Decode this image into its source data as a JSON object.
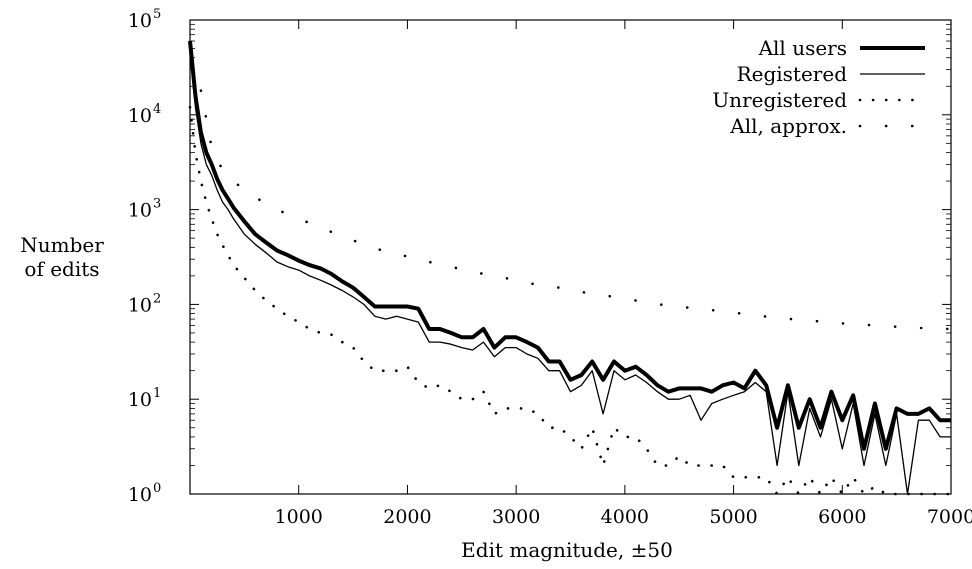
{
  "chart_data": {
    "type": "line",
    "title": "",
    "xlabel": "Edit magnitude, ±50",
    "ylabel_lines": [
      "Number",
      "of edits"
    ],
    "xlim": [
      0,
      7000
    ],
    "ylim": [
      1,
      100000
    ],
    "yscale": "log",
    "grid": false,
    "legend_position": "top-right",
    "x_tick_labels": [
      "1000",
      "2000",
      "3000",
      "4000",
      "5000",
      "6000",
      "7000"
    ],
    "x_tick_values": [
      1000,
      2000,
      3000,
      4000,
      5000,
      6000,
      7000
    ],
    "y_tick_base": "10",
    "y_tick_exponents": [
      "0",
      "1",
      "2",
      "3",
      "4",
      "5"
    ],
    "y_tick_values": [
      1,
      10,
      100,
      1000,
      10000,
      100000
    ],
    "series": [
      {
        "name": "All users",
        "style": "thick-solid",
        "color": "#000000",
        "x": [
          0,
          50,
          100,
          150,
          200,
          250,
          300,
          350,
          400,
          500,
          600,
          700,
          800,
          900,
          1000,
          1100,
          1200,
          1300,
          1400,
          1500,
          1600,
          1700,
          1800,
          1900,
          2000,
          2100,
          2200,
          2300,
          2400,
          2500,
          2600,
          2700,
          2800,
          2900,
          3000,
          3100,
          3200,
          3300,
          3400,
          3500,
          3600,
          3700,
          3800,
          3900,
          4000,
          4100,
          4200,
          4300,
          4400,
          4500,
          4600,
          4700,
          4800,
          4900,
          5000,
          5100,
          5200,
          5300,
          5400,
          5500,
          5600,
          5700,
          5800,
          5900,
          6000,
          6100,
          6200,
          6300,
          6400,
          6500,
          6600,
          6700,
          6800,
          6900,
          7000
        ],
        "values": [
          60000,
          16000,
          6500,
          4000,
          3000,
          2100,
          1600,
          1300,
          1050,
          750,
          550,
          450,
          370,
          330,
          290,
          260,
          240,
          210,
          175,
          150,
          120,
          95,
          95,
          95,
          95,
          90,
          55,
          55,
          50,
          45,
          45,
          55,
          35,
          45,
          45,
          40,
          35,
          25,
          25,
          16,
          18,
          25,
          16,
          25,
          20,
          22,
          18,
          14,
          12,
          13,
          13,
          13,
          12,
          14,
          15,
          13,
          20,
          14,
          5,
          14,
          5,
          10,
          5,
          12,
          6,
          11,
          3,
          9,
          3,
          8,
          7,
          7,
          8,
          6,
          6
        ],
        "x_exact": [
          0,
          50,
          100,
          150,
          200,
          250,
          300,
          350,
          400,
          500,
          600,
          700,
          800,
          900,
          1000,
          1100,
          1200,
          1300,
          1400,
          1500,
          1600,
          1700,
          1800,
          1900,
          2000,
          2100,
          2200,
          2300,
          2400,
          2500,
          2600,
          2700,
          2800,
          2900,
          3000,
          3100,
          3200,
          3300,
          3400,
          3500,
          3600,
          3700,
          3800,
          3900,
          4000,
          4100,
          4200,
          4300,
          4400,
          4500,
          4600,
          4700,
          4800,
          4900,
          5000,
          5100,
          5200,
          5300,
          5400,
          5500,
          5600,
          5700,
          5800,
          5900,
          6000,
          6100,
          6200,
          6300,
          6400,
          6500,
          6600,
          6700,
          6800,
          6900,
          7000
        ]
      },
      {
        "name": "Registered",
        "style": "thin-solid",
        "color": "#000000",
        "x": [
          0,
          50,
          100,
          150,
          200,
          250,
          300,
          350,
          400,
          500,
          600,
          700,
          800,
          900,
          1000,
          1100,
          1200,
          1300,
          1400,
          1500,
          1600,
          1700,
          1800,
          1900,
          2000,
          2100,
          2200,
          2300,
          2400,
          2500,
          2600,
          2700,
          2800,
          2900,
          3000,
          3100,
          3200,
          3300,
          3400,
          3500,
          3600,
          3700,
          3800,
          3900,
          4000,
          4100,
          4200,
          4300,
          4400,
          4500,
          4600,
          4700,
          4800,
          4900,
          5000,
          5100,
          5200,
          5300,
          5400,
          5500,
          5600,
          5700,
          5800,
          5900,
          6000,
          6100,
          6200,
          6300,
          6400,
          6500,
          6600,
          6700,
          6800,
          6900,
          7000
        ],
        "values": [
          45000,
          12000,
          5000,
          3000,
          2300,
          1600,
          1200,
          1000,
          800,
          550,
          430,
          350,
          280,
          250,
          230,
          200,
          180,
          160,
          140,
          120,
          100,
          75,
          70,
          75,
          70,
          65,
          40,
          40,
          38,
          35,
          33,
          40,
          28,
          35,
          35,
          30,
          27,
          20,
          20,
          12,
          14,
          20,
          7,
          20,
          16,
          18,
          15,
          12,
          10,
          10,
          11,
          6,
          9,
          10,
          11,
          12,
          15,
          12,
          2,
          12,
          2,
          8,
          4,
          10,
          3,
          9,
          2,
          7,
          2,
          7,
          1,
          6,
          6,
          4,
          4
        ]
      },
      {
        "name": "Unregistered",
        "style": "dotted-dense",
        "color": "#000000",
        "x": [
          0,
          50,
          100,
          150,
          200,
          250,
          300,
          350,
          400,
          500,
          600,
          700,
          800,
          900,
          1000,
          1100,
          1200,
          1300,
          1400,
          1500,
          1600,
          1700,
          1800,
          1900,
          2000,
          2100,
          2200,
          2300,
          2400,
          2500,
          2600,
          2700,
          2800,
          2900,
          3000,
          3100,
          3200,
          3300,
          3400,
          3500,
          3600,
          3700,
          3800,
          3900,
          4000,
          4100,
          4200,
          4300,
          4400,
          4500,
          4600,
          4700,
          4800,
          4900,
          5000,
          5100,
          5200,
          5300,
          5400,
          5500,
          5600,
          5700,
          5800,
          5900,
          6000,
          6100,
          6200,
          6300,
          6400,
          6500,
          6600,
          6700,
          6800,
          6900,
          7000
        ],
        "values": [
          12000,
          4000,
          2000,
          1200,
          800,
          550,
          420,
          330,
          260,
          190,
          140,
          110,
          90,
          75,
          65,
          55,
          50,
          48,
          40,
          35,
          25,
          20,
          20,
          20,
          22,
          15,
          13,
          14,
          12,
          10,
          10,
          12,
          7,
          8,
          8,
          8,
          7,
          5,
          5,
          4,
          3,
          5,
          2,
          5,
          4,
          4,
          3,
          2,
          2,
          2.5,
          2,
          2,
          2,
          2,
          1.5,
          1.5,
          1.5,
          1.5,
          1,
          1.5,
          1,
          1.5,
          1,
          1.5,
          1,
          1.5,
          1,
          1.2,
          1,
          1,
          1,
          1,
          1,
          1,
          1
        ]
      },
      {
        "name": "All, approx.",
        "style": "dotted-sparse",
        "color": "#000000",
        "x": [
          100,
          200,
          300,
          400,
          500,
          600,
          700,
          800,
          1000,
          1200,
          1400,
          1600,
          1800,
          2000,
          2200,
          2400,
          2600,
          2800,
          3000,
          3200,
          3400,
          3600,
          3800,
          4000,
          4200,
          4400,
          4600,
          4800,
          5000,
          5200,
          5400,
          5600,
          5800,
          6000,
          6200,
          6400,
          6600,
          6800,
          7000
        ],
        "values": [
          18000,
          4500,
          2600,
          2000,
          1600,
          1350,
          1150,
          1000,
          800,
          650,
          520,
          430,
          360,
          320,
          280,
          250,
          220,
          200,
          180,
          160,
          150,
          135,
          125,
          115,
          105,
          97,
          92,
          87,
          82,
          77,
          72,
          69,
          66,
          63,
          61,
          59,
          57,
          56,
          55
        ]
      }
    ],
    "legend": [
      {
        "label": "All users",
        "style": "thick-solid"
      },
      {
        "label": "Registered",
        "style": "thin-solid"
      },
      {
        "label": "Unregistered",
        "style": "dotted-dense"
      },
      {
        "label": "All, approx.",
        "style": "dotted-sparse"
      }
    ]
  }
}
